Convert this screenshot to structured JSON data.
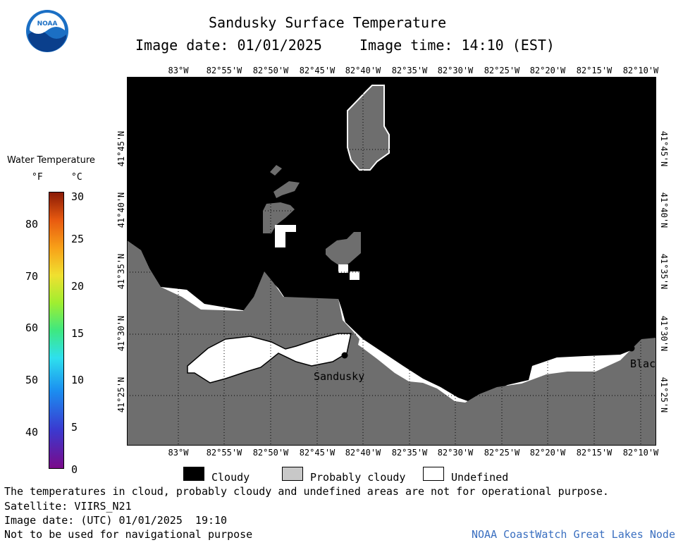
{
  "header": {
    "logo_text": "NOAA",
    "title": "Sandusky Surface Temperature",
    "image_date": "Image date: 01/01/2025",
    "image_time": "Image time: 14:10 (EST)"
  },
  "colorbar": {
    "title": "Water Temperature",
    "unit_f": "°F",
    "unit_c": "°C",
    "f_ticks": [
      "80",
      "70",
      "60",
      "50",
      "40"
    ],
    "c_ticks": [
      "30",
      "25",
      "20",
      "15",
      "10",
      "5",
      "0"
    ]
  },
  "map": {
    "lon_labels": [
      "83°W",
      "82°55'W",
      "82°50'W",
      "82°45'W",
      "82°40'W",
      "82°35'W",
      "82°30'W",
      "82°25'W",
      "82°20'W",
      "82°15'W",
      "82°10'W"
    ],
    "lat_labels": [
      "41°45'N",
      "41°40'N",
      "41°35'N",
      "41°30'N",
      "41°25'N"
    ],
    "places": {
      "sandusky": "Sandusky",
      "blac": "Blac"
    },
    "colors": {
      "cloudy": "#000000",
      "probably_cloudy": "#6e6e6e",
      "undefined": "#ffffff"
    }
  },
  "legend": {
    "cloudy": "Cloudy",
    "probably_cloudy": "Probably cloudy",
    "undefined": "Undefined"
  },
  "footer": {
    "disclaimer": "The temperatures in cloud, probably cloudy and undefined areas are not for operational purpose.",
    "satellite": "Satellite: VIIRS_N21",
    "image_date_utc": "Image date: (UTC) 01/01/2025  19:10",
    "nav_warning": "Not to be used for navigational purpose",
    "credit": "NOAA CoastWatch Great Lakes Node"
  }
}
